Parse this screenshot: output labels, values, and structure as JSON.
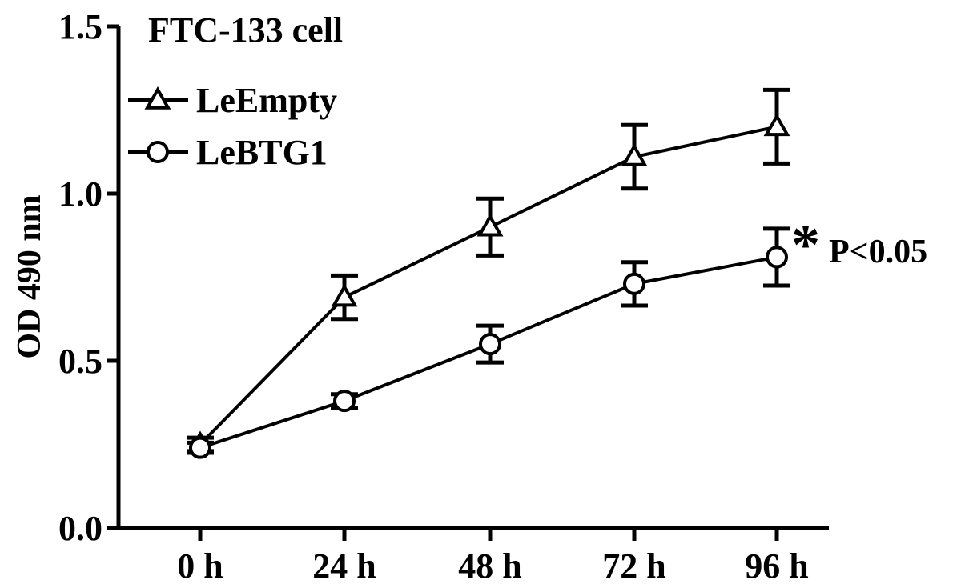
{
  "chart_data": {
    "type": "line",
    "title": "FTC-133 cell",
    "xlabel": "",
    "ylabel": "OD 490 nm",
    "categories": [
      "0 h",
      "24 h",
      "48 h",
      "72 h",
      "96 h"
    ],
    "ylim": [
      0,
      1.5
    ],
    "yticks": [
      "0.0",
      "0.5",
      "1.0",
      "1.5"
    ],
    "series": [
      {
        "name": "LeEmpty",
        "marker": "triangle",
        "values": [
          0.25,
          0.69,
          0.9,
          1.11,
          1.2
        ],
        "errors": [
          0.02,
          0.065,
          0.085,
          0.095,
          0.11
        ]
      },
      {
        "name": "LeBTG1",
        "marker": "circle",
        "values": [
          0.24,
          0.38,
          0.55,
          0.73,
          0.81
        ],
        "errors": [
          0.015,
          0.02,
          0.055,
          0.065,
          0.085
        ]
      }
    ],
    "annotation": {
      "symbol": "*",
      "text": "P<0.05"
    },
    "legend_position": "top-left",
    "grid": false,
    "colors": {
      "line": "#000000",
      "background": "#ffffff"
    }
  }
}
